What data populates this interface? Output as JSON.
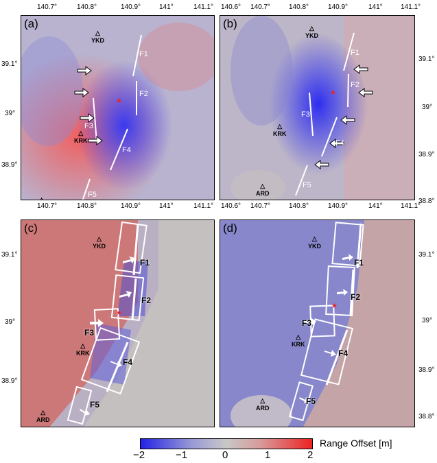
{
  "panels": [
    {
      "id": "a",
      "label": "(a)",
      "lon_ticks": [
        "140.7°",
        "140.8°",
        "140.9°",
        "141°",
        "141.1°"
      ],
      "lat_ticks": [
        "39.1°",
        "39°",
        "38.9°"
      ],
      "lat_side": "left"
    },
    {
      "id": "b",
      "label": "(b)",
      "lon_ticks": [
        "140.6°",
        "140.7°",
        "140.8°",
        "140.9°",
        "141°",
        "141.1°"
      ],
      "lat_ticks": [
        "39.1°",
        "39°",
        "38.9°",
        "38.8°"
      ],
      "lat_side": "right"
    },
    {
      "id": "c",
      "label": "(c)",
      "lon_ticks": [
        "140.7°",
        "140.8°",
        "140.9°",
        "141°",
        "141.1°"
      ],
      "lat_ticks": [
        "39.1°",
        "39°",
        "38.9°"
      ],
      "lat_side": "left"
    },
    {
      "id": "d",
      "label": "(d)",
      "lon_ticks": [
        "140.6°",
        "140.7°",
        "140.8°",
        "140.9°",
        "141°",
        "141.1°"
      ],
      "lat_ticks": [
        "39.1°",
        "39°",
        "38.9°",
        "38.8°"
      ],
      "lat_side": "right"
    }
  ],
  "stations": [
    "YKD",
    "KRK",
    "ARD"
  ],
  "faults": [
    "F1",
    "F2",
    "F3",
    "F4",
    "F5"
  ],
  "colorbar": {
    "title": "Range Offset [m]",
    "ticks": [
      "−2",
      "−1",
      "0",
      "1",
      "2"
    ],
    "min": -2,
    "max": 2,
    "colors": {
      "low": "#2323e6",
      "mid": "#c8c8c8",
      "high": "#ee2222"
    }
  }
}
